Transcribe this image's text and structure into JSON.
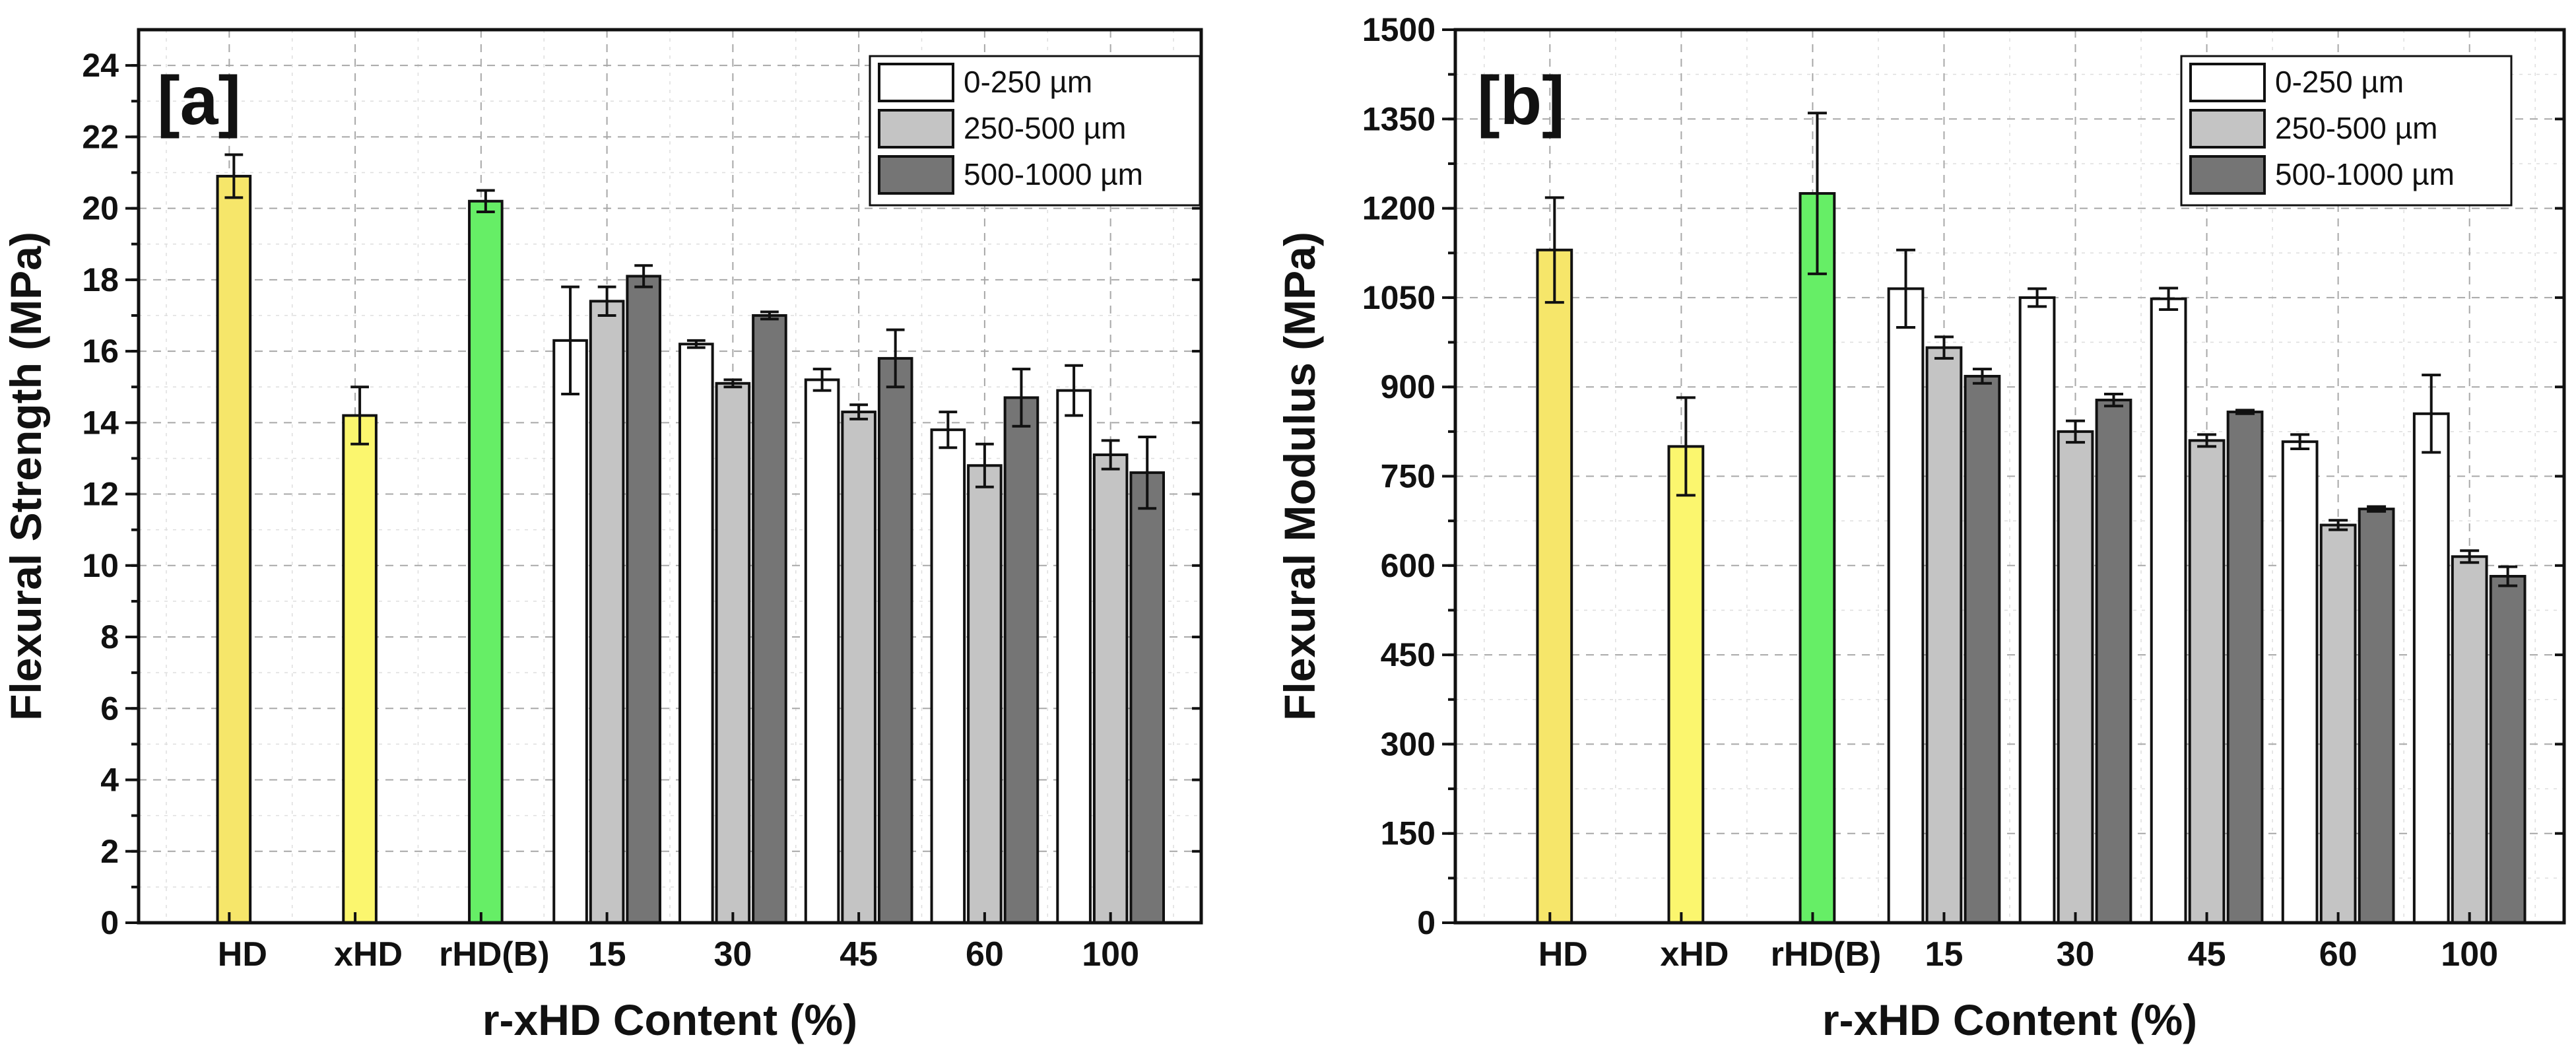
{
  "colors": {
    "HD": "#f6e66a",
    "xHD": "#fbf66e",
    "rHD(B)": "#66ee66",
    "0-250 µm": "#ffffff",
    "250-500 µm": "#c4c4c4",
    "500-1000 µm": "#757575"
  },
  "chart_data": [
    {
      "type": "bar",
      "panel_label": "[a]",
      "xlabel": "r-xHD Content (%)",
      "ylabel": "Flexural Strength (MPa)",
      "ylim": [
        0,
        25
      ],
      "yticks": [
        0,
        2,
        4,
        6,
        8,
        10,
        12,
        14,
        16,
        18,
        20,
        22,
        24
      ],
      "minor_step": 1,
      "grid": true,
      "legend_position": "top-right",
      "legend": [
        "0-250 µm",
        "250-500 µm",
        "500-1000 µm"
      ],
      "reference_bars": [
        {
          "category": "HD",
          "value": 20.9,
          "error": 0.6
        },
        {
          "category": "xHD",
          "value": 14.2,
          "error": 0.8
        },
        {
          "category": "rHD(B)",
          "value": 20.2,
          "error": 0.3
        }
      ],
      "categories": [
        "15",
        "30",
        "45",
        "60",
        "100"
      ],
      "series": [
        {
          "name": "0-250 µm",
          "values": [
            16.3,
            16.2,
            15.2,
            13.8,
            14.9
          ],
          "errors": [
            1.5,
            0.1,
            0.3,
            0.5,
            0.7
          ]
        },
        {
          "name": "250-500 µm",
          "values": [
            17.4,
            15.1,
            14.3,
            12.8,
            13.1
          ],
          "errors": [
            0.4,
            0.1,
            0.2,
            0.6,
            0.4
          ]
        },
        {
          "name": "500-1000 µm",
          "values": [
            18.1,
            17.0,
            15.8,
            14.7,
            12.6
          ],
          "errors": [
            0.3,
            0.1,
            0.8,
            0.8,
            1.0
          ]
        }
      ]
    },
    {
      "type": "bar",
      "panel_label": "[b]",
      "xlabel": "r-xHD Content (%)",
      "ylabel": "Flexural Modulus (MPa)",
      "ylim": [
        0,
        1500
      ],
      "yticks": [
        0,
        150,
        300,
        450,
        600,
        750,
        900,
        1050,
        1200,
        1350,
        1500
      ],
      "minor_step": 75,
      "grid": true,
      "legend_position": "top-right",
      "legend": [
        "0-250 µm",
        "250-500 µm",
        "500-1000 µm"
      ],
      "reference_bars": [
        {
          "category": "HD",
          "value": 1130,
          "error": 88
        },
        {
          "category": "xHD",
          "value": 800,
          "error": 82
        },
        {
          "category": "rHD(B)",
          "value": 1225,
          "error": 135
        }
      ],
      "categories": [
        "15",
        "30",
        "45",
        "60",
        "100"
      ],
      "series": [
        {
          "name": "0-250 µm",
          "values": [
            1065,
            1050,
            1048,
            808,
            855
          ],
          "errors": [
            65,
            15,
            18,
            12,
            65
          ]
        },
        {
          "name": "250-500 µm",
          "values": [
            966,
            825,
            810,
            668,
            615
          ],
          "errors": [
            18,
            18,
            10,
            8,
            10
          ]
        },
        {
          "name": "500-1000 µm",
          "values": [
            918,
            878,
            858,
            695,
            582
          ],
          "errors": [
            12,
            10,
            3,
            4,
            16
          ]
        }
      ]
    }
  ]
}
